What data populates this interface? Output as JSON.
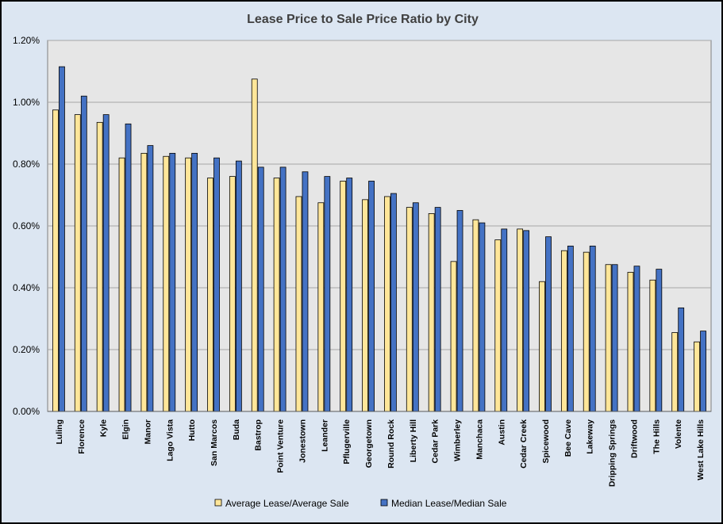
{
  "chart_data": {
    "type": "bar",
    "title": "Lease Price to Sale Price Ratio by City",
    "xlabel": "",
    "ylabel": "",
    "ylim": [
      0,
      1.2
    ],
    "yticks": [
      "0.00%",
      "0.20%",
      "0.40%",
      "0.60%",
      "0.80%",
      "1.00%",
      "1.20%"
    ],
    "grid": true,
    "legend_position": "bottom",
    "categories": [
      "Luling",
      "Florence",
      "Kyle",
      "Elgin",
      "Manor",
      "Lago Vista",
      "Hutto",
      "San Marcos",
      "Buda",
      "Bastrop",
      "Point Venture",
      "Jonestown",
      "Leander",
      "Pflugerville",
      "Georgetown",
      "Round Rock",
      "Liberty Hill",
      "Cedar Park",
      "Wimberley",
      "Manchaca",
      "Austin",
      "Cedar Creek",
      "Spicewood",
      "Bee Cave",
      "Lakeway",
      "Dripping Springs",
      "Driftwood",
      "The Hills",
      "Volente",
      "West Lake Hills"
    ],
    "series": [
      {
        "name": "Average Lease/Average Sale",
        "color": "#ffe699",
        "values": [
          0.975,
          0.96,
          0.935,
          0.82,
          0.835,
          0.825,
          0.82,
          0.755,
          0.76,
          1.075,
          0.755,
          0.695,
          0.675,
          0.745,
          0.685,
          0.695,
          0.66,
          0.64,
          0.485,
          0.62,
          0.555,
          0.59,
          0.42,
          0.52,
          0.515,
          0.475,
          0.45,
          0.425,
          0.255,
          0.225
        ]
      },
      {
        "name": "Median Lease/Median Sale",
        "color": "#4472c4",
        "values": [
          1.115,
          1.02,
          0.96,
          0.93,
          0.86,
          0.835,
          0.835,
          0.82,
          0.81,
          0.79,
          0.79,
          0.775,
          0.76,
          0.755,
          0.745,
          0.705,
          0.675,
          0.66,
          0.65,
          0.61,
          0.59,
          0.585,
          0.565,
          0.535,
          0.535,
          0.475,
          0.47,
          0.46,
          0.335,
          0.26
        ]
      }
    ],
    "plot_background": "#e6e6e6",
    "chart_background": "#dce6f2"
  }
}
